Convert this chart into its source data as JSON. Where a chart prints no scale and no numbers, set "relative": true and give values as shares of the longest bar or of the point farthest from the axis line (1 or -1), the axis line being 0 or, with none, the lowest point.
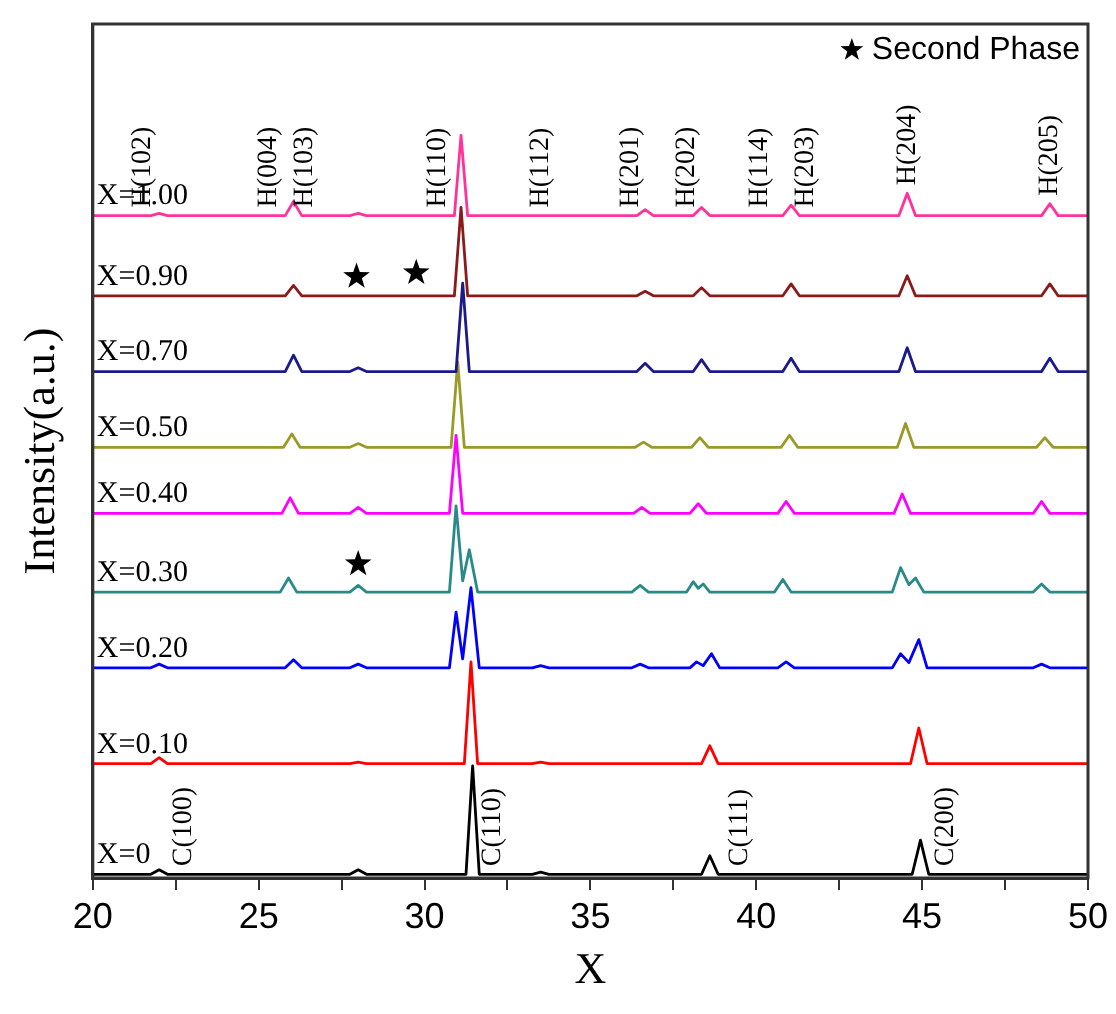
{
  "chart_data": {
    "type": "line",
    "xlabel": "X",
    "ylabel": "Intensity(a.u.)",
    "relative": true,
    "legend": "top right",
    "grid": false,
    "marker": "none",
    "line_style": "solid",
    "xlim": [
      20,
      50
    ],
    "xticks": [
      20,
      {
        "value": 22.5,
        "label": null
      },
      25,
      {
        "value": 27.5,
        "label": null
      },
      30,
      {
        "value": 32.5,
        "label": null
      },
      35,
      {
        "value": 37.5,
        "label": null
      },
      40,
      {
        "value": 42.5,
        "label": null
      },
      45,
      {
        "value": 47.5,
        "label": null
      },
      50
    ],
    "series": [
      {
        "name": "X=1.00",
        "color": "#ff3399",
        "x": [
          20,
          21.75,
          22,
          22.25,
          25.8,
          26.05,
          26.3,
          27.75,
          28,
          28.25,
          30.9,
          31.1,
          31.3,
          36.4,
          36.65,
          36.9,
          38.1,
          38.35,
          38.6,
          40.8,
          41.05,
          41.3,
          44.3,
          44.55,
          44.8,
          48.6,
          48.85,
          49.1,
          50
        ],
        "values": [
          0.892,
          0.892,
          0.895,
          0.892,
          0.892,
          0.911,
          0.892,
          0.892,
          0.895,
          0.892,
          0.892,
          1.0,
          0.892,
          0.892,
          0.9,
          0.892,
          0.892,
          0.903,
          0.892,
          0.892,
          0.906,
          0.892,
          0.892,
          0.922,
          0.892,
          0.892,
          0.908,
          0.892,
          0.892
        ]
      },
      {
        "name": "X=0.90",
        "color": "#8b1a1a",
        "x": [
          20,
          25.8,
          26.05,
          26.3,
          30.9,
          31.1,
          31.3,
          36.4,
          36.65,
          36.9,
          38.1,
          38.35,
          38.6,
          40.8,
          41.05,
          41.3,
          44.3,
          44.55,
          44.8,
          48.6,
          48.85,
          49.1,
          50
        ],
        "values": [
          0.784,
          0.784,
          0.798,
          0.784,
          0.784,
          0.903,
          0.784,
          0.784,
          0.79,
          0.784,
          0.784,
          0.795,
          0.784,
          0.784,
          0.8,
          0.784,
          0.784,
          0.811,
          0.784,
          0.784,
          0.8,
          0.784,
          0.784
        ]
      },
      {
        "name": "X=0.70",
        "color": "#1a1a8b",
        "x": [
          20,
          25.8,
          26.05,
          26.3,
          27.75,
          28,
          28.25,
          30.95,
          31.15,
          31.35,
          36.4,
          36.65,
          36.9,
          38.1,
          38.35,
          38.6,
          40.8,
          41.05,
          41.3,
          44.3,
          44.55,
          44.8,
          48.6,
          48.85,
          49.1,
          50
        ],
        "values": [
          0.682,
          0.682,
          0.704,
          0.682,
          0.682,
          0.687,
          0.682,
          0.682,
          0.801,
          0.682,
          0.682,
          0.693,
          0.682,
          0.682,
          0.698,
          0.682,
          0.682,
          0.7,
          0.682,
          0.682,
          0.714,
          0.682,
          0.682,
          0.7,
          0.682,
          0.682
        ]
      },
      {
        "name": "X=0.50",
        "color": "#9a9a2a",
        "x": [
          20,
          25.75,
          26,
          26.25,
          27.75,
          28,
          28.25,
          30.8,
          31,
          31.2,
          36.35,
          36.6,
          36.85,
          38.05,
          38.3,
          38.55,
          40.75,
          41,
          41.25,
          44.25,
          44.5,
          44.75,
          48.45,
          48.7,
          48.95,
          50
        ],
        "values": [
          0.58,
          0.58,
          0.598,
          0.58,
          0.58,
          0.585,
          0.58,
          0.58,
          0.695,
          0.58,
          0.58,
          0.587,
          0.58,
          0.58,
          0.593,
          0.58,
          0.58,
          0.596,
          0.58,
          0.58,
          0.612,
          0.58,
          0.58,
          0.593,
          0.58,
          0.58
        ]
      },
      {
        "name": "X=0.40",
        "color": "#ff00ff",
        "x": [
          20,
          25.7,
          25.95,
          26.2,
          27.75,
          28,
          28.25,
          30.75,
          30.95,
          31.15,
          36.3,
          36.55,
          36.8,
          38,
          38.25,
          38.5,
          40.65,
          40.9,
          41.15,
          44.15,
          44.4,
          44.65,
          48.35,
          48.6,
          48.85,
          50
        ],
        "values": [
          0.491,
          0.491,
          0.512,
          0.491,
          0.491,
          0.499,
          0.491,
          0.491,
          0.596,
          0.491,
          0.491,
          0.499,
          0.491,
          0.491,
          0.504,
          0.491,
          0.491,
          0.507,
          0.491,
          0.491,
          0.517,
          0.491,
          0.491,
          0.507,
          0.491,
          0.491
        ]
      },
      {
        "name": "X=0.30",
        "color": "#2a8a8a",
        "x": [
          20,
          25.65,
          25.9,
          26.15,
          27.75,
          28,
          28.25,
          30.75,
          30.95,
          31.15,
          31.35,
          31.6,
          36.25,
          36.5,
          36.75,
          37.9,
          38.1,
          38.25,
          38.4,
          38.6,
          40.55,
          40.8,
          41.05,
          44.1,
          44.35,
          44.6,
          44.8,
          45.05,
          48.35,
          48.6,
          48.85,
          50
        ],
        "values": [
          0.385,
          0.385,
          0.404,
          0.385,
          0.385,
          0.394,
          0.385,
          0.385,
          0.501,
          0.4,
          0.442,
          0.385,
          0.385,
          0.394,
          0.385,
          0.385,
          0.399,
          0.39,
          0.396,
          0.385,
          0.385,
          0.402,
          0.385,
          0.385,
          0.418,
          0.395,
          0.404,
          0.385,
          0.385,
          0.396,
          0.385,
          0.385
        ]
      },
      {
        "name": "X=0.20",
        "color": "#0000ff",
        "x": [
          20,
          21.75,
          22,
          22.25,
          25.8,
          26.05,
          26.3,
          27.75,
          28,
          28.25,
          30.75,
          30.95,
          31.15,
          31.4,
          31.65,
          33.25,
          33.5,
          33.75,
          36.25,
          36.5,
          36.75,
          38,
          38.2,
          38.4,
          38.65,
          38.9,
          40.65,
          40.9,
          41.15,
          44.1,
          44.35,
          44.6,
          44.9,
          45.15,
          48.35,
          48.6,
          48.85,
          50
        ],
        "values": [
          0.283,
          0.283,
          0.288,
          0.283,
          0.283,
          0.294,
          0.283,
          0.283,
          0.288,
          0.283,
          0.283,
          0.358,
          0.295,
          0.391,
          0.283,
          0.283,
          0.286,
          0.283,
          0.283,
          0.288,
          0.283,
          0.283,
          0.291,
          0.286,
          0.302,
          0.283,
          0.283,
          0.291,
          0.283,
          0.283,
          0.302,
          0.29,
          0.321,
          0.283,
          0.283,
          0.288,
          0.283,
          0.283
        ]
      },
      {
        "name": "X=0.10",
        "color": "#ff0000",
        "x": [
          20,
          21.75,
          22,
          22.25,
          27.75,
          28,
          28.25,
          31.2,
          31.4,
          31.6,
          33.25,
          33.5,
          33.75,
          38.35,
          38.6,
          38.85,
          44.65,
          44.9,
          45.15,
          50
        ],
        "values": [
          0.154,
          0.154,
          0.162,
          0.154,
          0.154,
          0.156,
          0.154,
          0.154,
          0.291,
          0.154,
          0.154,
          0.156,
          0.154,
          0.154,
          0.178,
          0.154,
          0.154,
          0.202,
          0.154,
          0.154
        ]
      },
      {
        "name": "X=0",
        "color": "#000000",
        "x": [
          20,
          21.75,
          22,
          22.25,
          27.75,
          28,
          28.25,
          31.25,
          31.45,
          31.65,
          33.25,
          33.5,
          33.75,
          38.35,
          38.6,
          38.85,
          44.7,
          44.95,
          45.2,
          50
        ],
        "values": [
          0.005,
          0.005,
          0.011,
          0.005,
          0.005,
          0.011,
          0.005,
          0.005,
          0.151,
          0.005,
          0.005,
          0.008,
          0.005,
          0.005,
          0.03,
          0.005,
          0.005,
          0.051,
          0.005,
          0.005
        ]
      },
      {
        "name": "Second Phase",
        "type": "scatter",
        "marker": "star",
        "color": "#000000",
        "x": [
          27.95,
          29.75,
          28.0
        ],
        "values": [
          0.81,
          0.815,
          0.423
        ]
      }
    ],
    "annotations": [
      {
        "text": "H(102)",
        "x": 21.5,
        "y": 0.892
      },
      {
        "text": "H(004)",
        "x": 25.3,
        "y": 0.892
      },
      {
        "text": "H(103)",
        "x": 26.4,
        "y": 0.892
      },
      {
        "text": "H(110)",
        "x": 30.4,
        "y": 0.892
      },
      {
        "text": "H(112)",
        "x": 33.5,
        "y": 0.892
      },
      {
        "text": "H(201)",
        "x": 36.2,
        "y": 0.892
      },
      {
        "text": "H(202)",
        "x": 37.9,
        "y": 0.892
      },
      {
        "text": "H(114)",
        "x": 40.1,
        "y": 0.892
      },
      {
        "text": "H(203)",
        "x": 41.5,
        "y": 0.892
      },
      {
        "text": "H(204)",
        "x": 44.55,
        "y": 0.922
      },
      {
        "text": "H(205)",
        "x": 48.85,
        "y": 0.908
      },
      {
        "text": "C(100)",
        "x": 22.75,
        "y": 0.005
      },
      {
        "text": "C(110)",
        "x": 32.05,
        "y": 0.005
      },
      {
        "text": "C(111)",
        "x": 39.5,
        "y": 0.005
      },
      {
        "text": "C(200)",
        "x": 45.7,
        "y": 0.005
      }
    ]
  }
}
